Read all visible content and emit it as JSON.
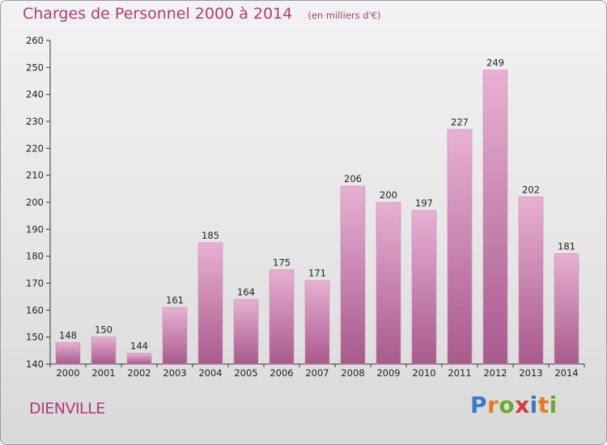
{
  "header": {
    "title": "Charges de Personnel 2000 à 2014",
    "subtitle": "(en milliers d'€)"
  },
  "footer": {
    "commune": "DIENVILLE",
    "brand": "Proxiti"
  },
  "colors": {
    "accent": "#b03a7a",
    "bar_light": "#e8b0d4",
    "bar_dark": "#a85a8c",
    "brand_letters": [
      "#3a79c9",
      "#e8781e",
      "#6aab2d",
      "#d83a3a",
      "#3a79c9",
      "#e8781e",
      "#6aab2d"
    ]
  },
  "chart_data": {
    "type": "bar",
    "title": "Charges de Personnel 2000 à 2014",
    "subtitle": "(en milliers d'€)",
    "xlabel": "",
    "ylabel": "",
    "categories": [
      "2000",
      "2001",
      "2002",
      "2003",
      "2004",
      "2005",
      "2006",
      "2007",
      "2008",
      "2009",
      "2010",
      "2011",
      "2012",
      "2013",
      "2014"
    ],
    "values": [
      148,
      150,
      144,
      161,
      185,
      164,
      175,
      171,
      206,
      200,
      197,
      227,
      249,
      202,
      181
    ],
    "ylim": [
      140,
      260
    ],
    "yticks": [
      140,
      150,
      160,
      170,
      180,
      190,
      200,
      210,
      220,
      230,
      240,
      250,
      260
    ],
    "grid": false,
    "legend": "none"
  }
}
